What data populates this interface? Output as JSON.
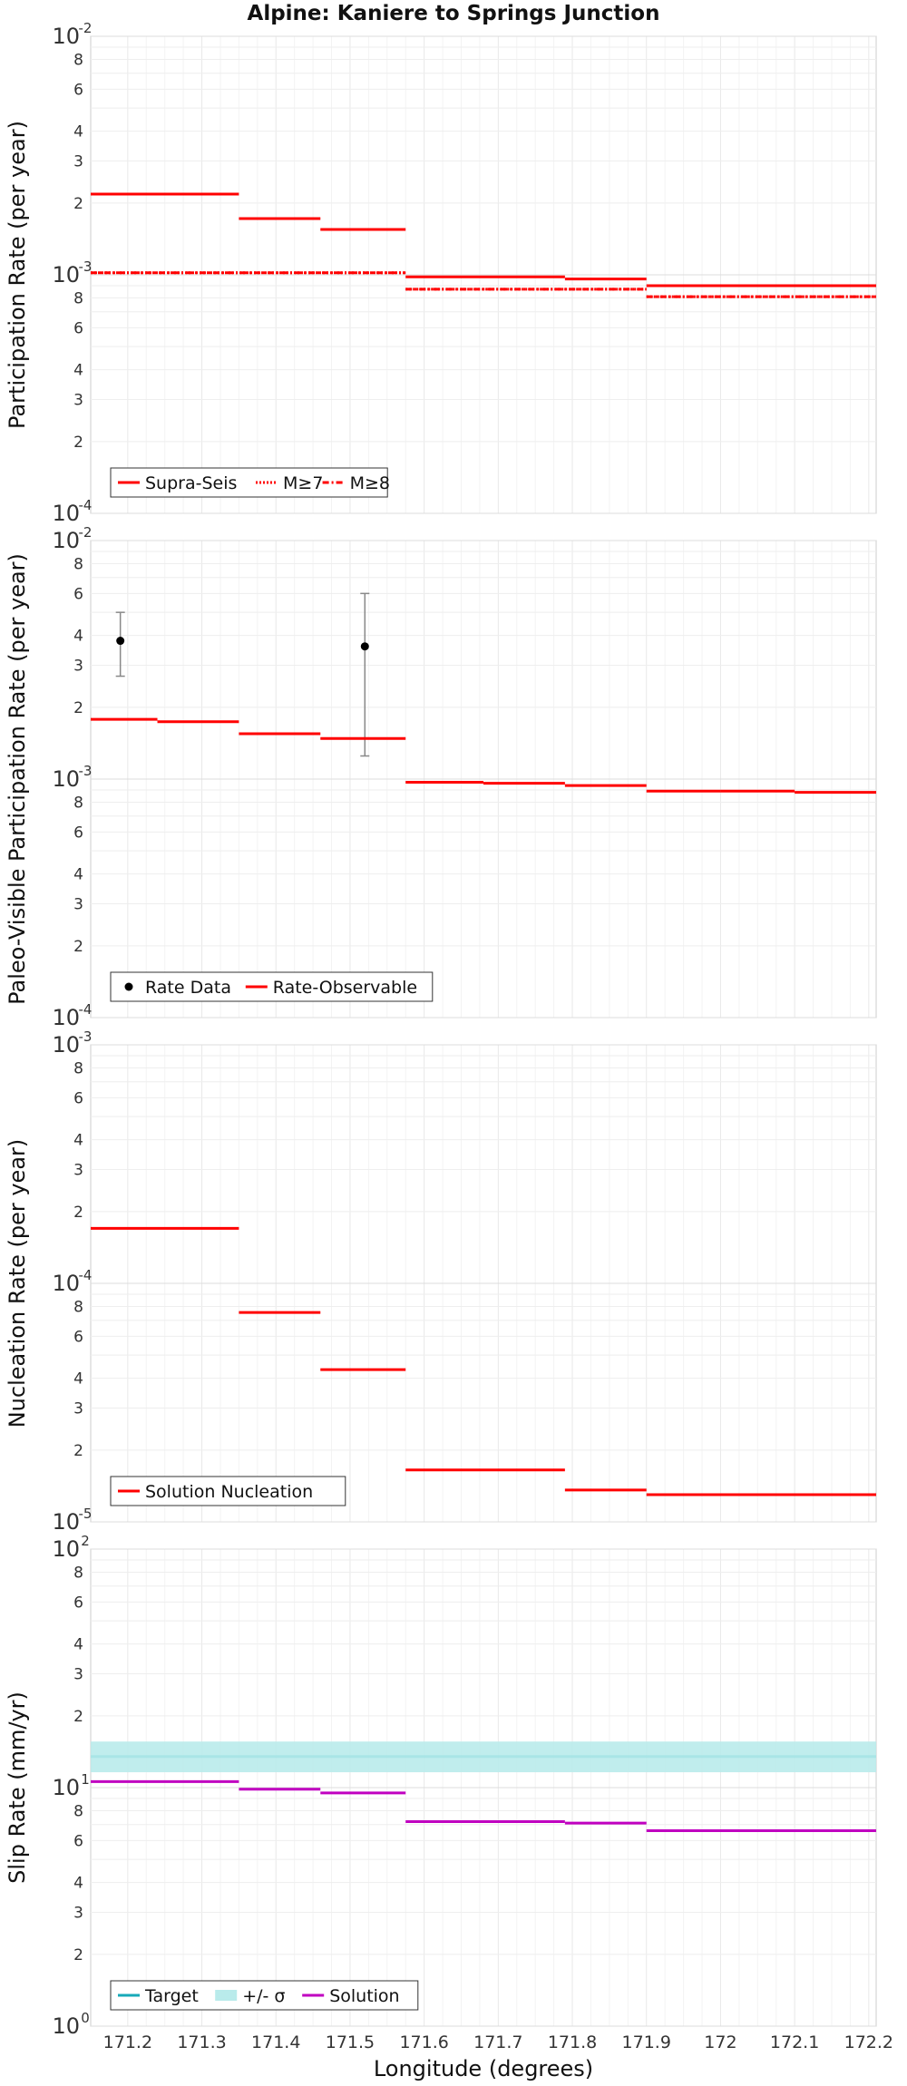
{
  "figure": {
    "title": "Alpine: Kaniere to Springs Junction",
    "xlabel": "Longitude (degrees)"
  },
  "chart_data": [
    {
      "type": "line",
      "ylabel": "Participation Rate (per year)",
      "yscale": "log",
      "ylim": [
        0.0001,
        0.01
      ],
      "xlim": [
        171.15,
        172.21
      ],
      "x_ticks": [
        171.2,
        171.3,
        171.4,
        171.5,
        171.6,
        171.7,
        171.8,
        171.9,
        172,
        172.1,
        172.2
      ],
      "legend_position": "bottom-left",
      "grid": true,
      "series": [
        {
          "name": "Supra-Seis",
          "style": "solid",
          "color": "#ff0000",
          "segments": [
            [
              171.15,
              171.35,
              0.00218
            ],
            [
              171.35,
              171.46,
              0.00172
            ],
            [
              171.46,
              171.575,
              0.00155
            ],
            [
              171.575,
              171.79,
              0.00098
            ],
            [
              171.79,
              171.9,
              0.00096
            ],
            [
              171.9,
              172.21,
              0.0009
            ]
          ]
        },
        {
          "name": "M≥7",
          "style": "dotted",
          "color": "#ff0000",
          "segments": [
            [
              171.15,
              171.575,
              0.00102
            ],
            [
              171.575,
              171.9,
              0.00087
            ],
            [
              171.9,
              172.21,
              0.00081
            ]
          ]
        },
        {
          "name": "M≥8",
          "style": "dashdot",
          "color": "#ff0000",
          "segments": [
            [
              171.15,
              171.575,
              0.00102
            ],
            [
              171.575,
              171.9,
              0.00087
            ],
            [
              171.9,
              172.21,
              0.00081
            ]
          ]
        }
      ]
    },
    {
      "type": "line",
      "ylabel": "Paleo-Visible Participation Rate (per year)",
      "yscale": "log",
      "ylim": [
        0.0001,
        0.01
      ],
      "xlim": [
        171.15,
        172.21
      ],
      "legend_position": "bottom-left",
      "grid": true,
      "series": [
        {
          "name": "Rate Data",
          "style": "points",
          "color": "#000000",
          "points": [
            {
              "x": 171.19,
              "y": 0.0038,
              "lo": 0.0027,
              "hi": 0.005
            },
            {
              "x": 171.52,
              "y": 0.0036,
              "lo": 0.00125,
              "hi": 0.006
            }
          ]
        },
        {
          "name": "Rate-Observable",
          "style": "solid",
          "color": "#ff0000",
          "segments": [
            [
              171.15,
              171.24,
              0.00178
            ],
            [
              171.24,
              171.35,
              0.00174
            ],
            [
              171.35,
              171.46,
              0.00155
            ],
            [
              171.46,
              171.575,
              0.00148
            ],
            [
              171.575,
              171.68,
              0.00097
            ],
            [
              171.68,
              171.79,
              0.00096
            ],
            [
              171.79,
              171.9,
              0.00094
            ],
            [
              171.9,
              172.0,
              0.00089
            ],
            [
              172.0,
              172.1,
              0.00089
            ],
            [
              172.1,
              172.21,
              0.00088
            ]
          ]
        }
      ]
    },
    {
      "type": "line",
      "ylabel": "Nucleation Rate (per year)",
      "yscale": "log",
      "ylim": [
        1e-05,
        0.001
      ],
      "xlim": [
        171.15,
        172.21
      ],
      "legend_position": "bottom-left",
      "grid": true,
      "series": [
        {
          "name": "Solution Nucleation",
          "style": "solid",
          "color": "#ff0000",
          "segments": [
            [
              171.15,
              171.35,
              0.00017
            ],
            [
              171.35,
              171.46,
              7.55e-05
            ],
            [
              171.46,
              171.575,
              4.35e-05
            ],
            [
              171.575,
              171.79,
              1.65e-05
            ],
            [
              171.79,
              171.9,
              1.36e-05
            ],
            [
              171.9,
              172.21,
              1.3e-05
            ]
          ]
        }
      ]
    },
    {
      "type": "line",
      "ylabel": "Slip Rate (mm/yr)",
      "yscale": "log",
      "ylim": [
        1,
        100
      ],
      "xlim": [
        171.15,
        172.21
      ],
      "legend_position": "bottom-left",
      "grid": true,
      "series": [
        {
          "name": "Target",
          "style": "solid",
          "color": "#17a9b8",
          "segments": [
            [
              171.15,
              172.21,
              13.5
            ]
          ]
        },
        {
          "name": "+/- σ",
          "style": "band",
          "color": "#b9ebeb",
          "band": [
            171.15,
            172.21,
            11.6,
            15.6
          ]
        },
        {
          "name": "Solution",
          "style": "solid",
          "color": "#c000c0",
          "segments": [
            [
              171.15,
              171.35,
              10.6
            ],
            [
              171.35,
              171.46,
              9.85
            ],
            [
              171.46,
              171.575,
              9.5
            ],
            [
              171.575,
              171.79,
              7.2
            ],
            [
              171.79,
              171.9,
              7.1
            ],
            [
              171.9,
              172.21,
              6.6
            ]
          ]
        }
      ]
    }
  ]
}
